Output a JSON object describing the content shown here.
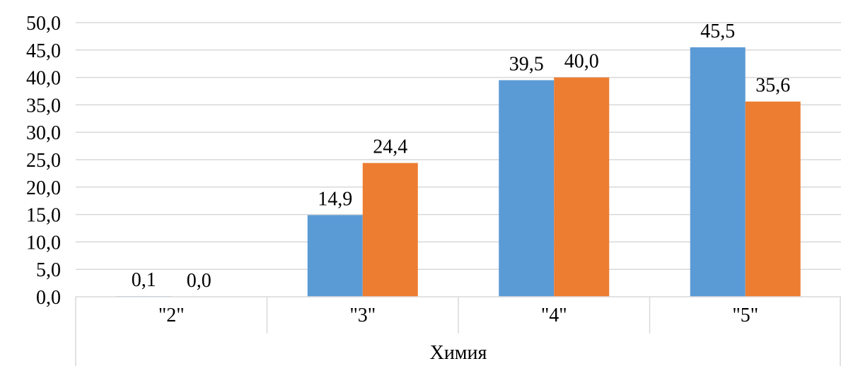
{
  "chart_data": {
    "type": "bar",
    "categories": [
      "\"2\"",
      "\"3\"",
      "\"4\"",
      "\"5\""
    ],
    "group_label": "Химия",
    "series": [
      {
        "values": [
          0.1,
          14.9,
          39.5,
          45.5
        ],
        "labels": [
          "0,1",
          "14,9",
          "39,5",
          "45,5"
        ],
        "color": "#5b9bd5"
      },
      {
        "values": [
          0.0,
          24.4,
          40.0,
          35.6
        ],
        "labels": [
          "0,0",
          "24,4",
          "40,0",
          "35,6"
        ],
        "color": "#ed7d31"
      }
    ],
    "ylim": [
      0,
      50
    ],
    "ytick_values": [
      0,
      5,
      10,
      15,
      20,
      25,
      30,
      35,
      40,
      45,
      50
    ],
    "ytick_labels": [
      "0,0",
      "5,0",
      "10,0",
      "15,0",
      "20,0",
      "25,0",
      "30,0",
      "35,0",
      "40,0",
      "45,0",
      "50,0"
    ],
    "grid": true,
    "legend": false
  }
}
